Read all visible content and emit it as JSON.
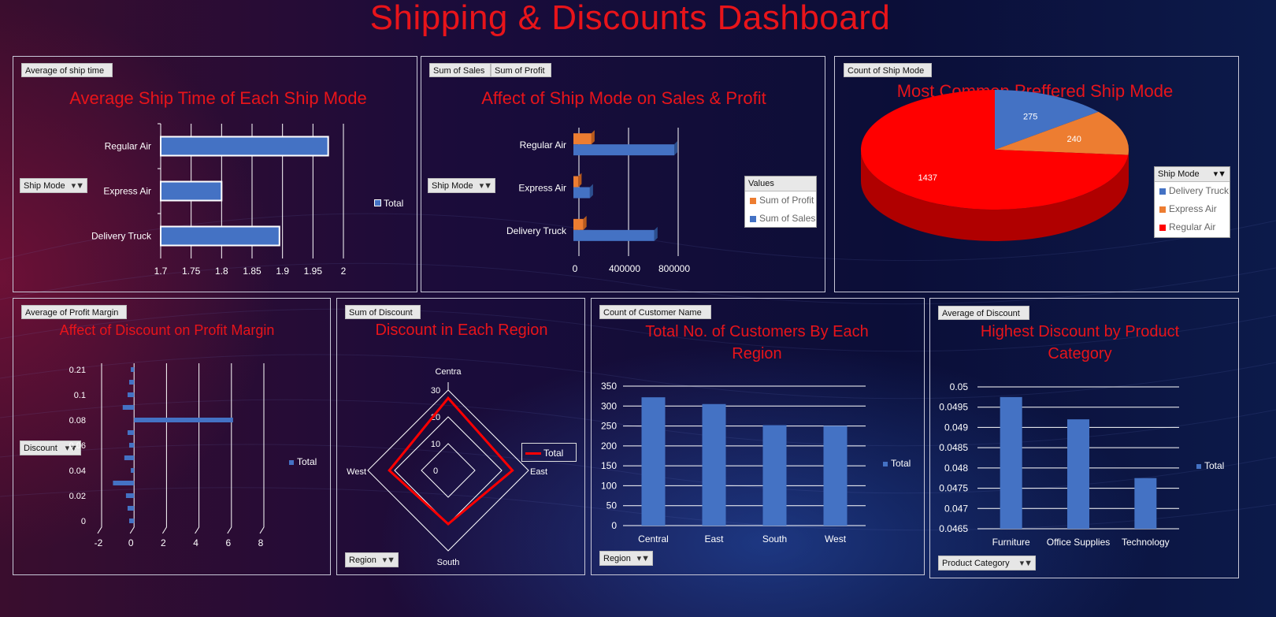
{
  "dashboard_title": "Shipping & Discounts Dashboard",
  "colors": {
    "accent_red": "#e8141a",
    "bar_blue": "#4472c4",
    "orange": "#ed7d31",
    "red": "#ff0000"
  },
  "filter_icon": "funnel-icon",
  "panels": {
    "ship_time": {
      "field_button": "Average of ship time",
      "title": "Average Ship Time of Each Ship Mode",
      "filter_label": "Ship Mode",
      "legend": "Total"
    },
    "sales_profit": {
      "field_buttons": [
        "Sum of Sales",
        "Sum of Profit"
      ],
      "title": "Affect of Ship Mode on Sales & Profit",
      "filter_label": "Ship Mode",
      "legend_header": "Values",
      "legend_items": [
        "Sum of Profit",
        "Sum of Sales"
      ]
    },
    "ship_mode_count": {
      "field_button": "Count of Ship Mode",
      "title": "Most Common Preffered Ship Mode",
      "legend_header": "Ship Mode",
      "legend_items": [
        "Delivery Truck",
        "Express Air",
        "Regular Air"
      ]
    },
    "profit_margin": {
      "field_button": "Average of Profit Margin",
      "title": "Affect of Discount on Profit Margin",
      "filter_label": "Discount",
      "legend": "Total"
    },
    "region_discount": {
      "field_button": "Sum of Discount",
      "title": "Discount in Each Region",
      "filter_label": "Region",
      "legend": "Total"
    },
    "customers": {
      "field_button": "Count of Customer Name",
      "title": "Total No. of Customers By Each Region",
      "filter_label": "Region",
      "legend": "Total"
    },
    "category_discount": {
      "field_button": "Average of Discount",
      "title": "Highest Discount by Product Category",
      "filter_label": "Product Category",
      "legend": "Total"
    }
  },
  "chart_data": [
    {
      "type": "bar",
      "orientation": "horizontal",
      "title": "Average Ship Time of Each Ship Mode",
      "categories": [
        "Regular Air",
        "Express Air",
        "Delivery Truck"
      ],
      "values": [
        1.975,
        1.8,
        1.895
      ],
      "xlim": [
        1.7,
        2
      ],
      "xticks": [
        "1.7",
        "1.75",
        "1.8",
        "1.85",
        "1.9",
        "1.95",
        "2"
      ],
      "series": [
        {
          "name": "Total",
          "values": [
            1.975,
            1.8,
            1.895
          ]
        }
      ],
      "legend_position": "right"
    },
    {
      "type": "bar",
      "orientation": "horizontal",
      "title": "Affect of Ship Mode on Sales & Profit",
      "categories": [
        "Regular Air",
        "Express Air",
        "Delivery Truck"
      ],
      "xlim": [
        0,
        1000000
      ],
      "xticks": [
        "0",
        "400000",
        "800000"
      ],
      "series": [
        {
          "name": "Sum of Profit",
          "values": [
            120000,
            15000,
            55000
          ]
        },
        {
          "name": "Sum of Sales",
          "values": [
            800000,
            120000,
            640000
          ]
        }
      ],
      "legend_position": "right"
    },
    {
      "type": "pie",
      "title": "Most Common Preffered Ship Mode",
      "categories": [
        "Delivery Truck",
        "Express Air",
        "Regular Air"
      ],
      "values": [
        275,
        240,
        1437
      ],
      "labels": [
        "275",
        "240",
        "1437"
      ],
      "legend_position": "right"
    },
    {
      "type": "bar",
      "orientation": "horizontal",
      "title": "Affect of Discount on Profit Margin",
      "categories": [
        "0",
        "",
        "0.02",
        "",
        "0.04",
        "",
        "0.06",
        "",
        "0.08",
        "",
        "0.1",
        "",
        "0.21"
      ],
      "values": [
        -0.3,
        -0.4,
        -0.5,
        -1.3,
        -0.2,
        -0.6,
        -0.3,
        -0.4,
        6.1,
        -0.7,
        -0.4,
        -0.3,
        -0.2
      ],
      "xlim": [
        -2,
        8
      ],
      "xticks": [
        "-2",
        "0",
        "2",
        "4",
        "6",
        "8"
      ],
      "series": [
        {
          "name": "Total"
        }
      ],
      "legend_position": "right"
    },
    {
      "type": "radar",
      "title": "Discount in Each Region",
      "categories": [
        "Central",
        "East",
        "South",
        "West"
      ],
      "values": [
        27,
        24,
        20,
        22
      ],
      "rlim": [
        0,
        30
      ],
      "rticks": [
        "0",
        "10",
        "20",
        "30"
      ],
      "series": [
        {
          "name": "Total"
        }
      ],
      "legend_position": "right"
    },
    {
      "type": "bar",
      "title": "Total No. of Customers By Each Region",
      "categories": [
        "Central",
        "East",
        "South",
        "West"
      ],
      "values": [
        322,
        305,
        252,
        250
      ],
      "ylim": [
        0,
        350
      ],
      "yticks": [
        "0",
        "50",
        "100",
        "150",
        "200",
        "250",
        "300",
        "350"
      ],
      "series": [
        {
          "name": "Total"
        }
      ],
      "legend_position": "right"
    },
    {
      "type": "bar",
      "title": "Highest Discount by Product Category",
      "categories": [
        "Furniture",
        "Office Supplies",
        "Technology"
      ],
      "values": [
        0.04975,
        0.0492,
        0.04775
      ],
      "ylim": [
        0.0465,
        0.05
      ],
      "yticks": [
        "0.0465",
        "0.047",
        "0.0475",
        "0.048",
        "0.0485",
        "0.049",
        "0.0495",
        "0.05"
      ],
      "series": [
        {
          "name": "Total"
        }
      ],
      "legend_position": "right"
    }
  ]
}
